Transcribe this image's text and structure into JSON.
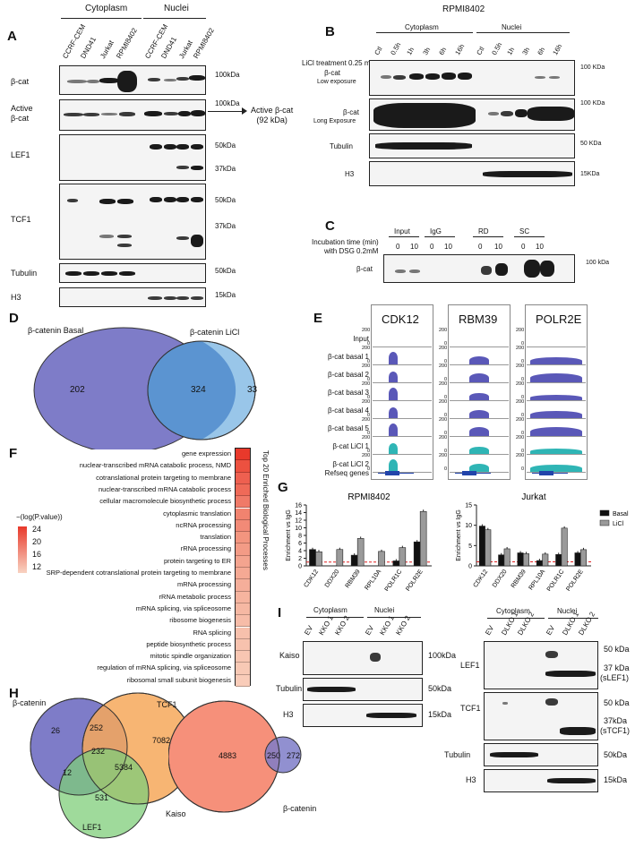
{
  "panels": {
    "A": "A",
    "B": "B",
    "C": "C",
    "D": "D",
    "E": "E",
    "F": "F",
    "G": "G",
    "H": "H",
    "I": "I"
  },
  "A": {
    "cyto": "Cytoplasm",
    "nuc": "Nuclei",
    "lanes": [
      "CCRF-CEM",
      "DND41",
      "Jurkat",
      "RPMI8402",
      "CCRF-CEM",
      "DND41",
      "Jurkat",
      "RPMI8402"
    ],
    "rows": [
      "β-cat",
      "Active\nβ-cat",
      "LEF1",
      "TCF1",
      "Tubulin",
      "H3"
    ],
    "sizes": {
      "b1": "100kDa",
      "b2": "100kDa",
      "l1": "50kDa",
      "l2": "37kDa",
      "t1": "50kDa",
      "t2": "37kDa",
      "tub": "50kDa",
      "h3": "15kDa"
    },
    "active_note": "Active β-cat\n(92 kDa)"
  },
  "B": {
    "title": "RPMI8402",
    "cyto": "Cytoplasm",
    "nuc": "Nuclei",
    "treat": "LiCl treatment 0.25 mM",
    "lanes": [
      "Ctl",
      "0.5h",
      "1h",
      "3h",
      "6h",
      "16h",
      "Ctl",
      "0.5h",
      "1h",
      "3h",
      "6h",
      "16h"
    ],
    "rows": [
      "β-cat",
      "Low exposure",
      "β-cat",
      "Long Exposure",
      "Tubulin",
      "H3"
    ],
    "sizes": [
      "100 KDa",
      "100 KDa",
      "50 KDa",
      "15KDa"
    ]
  },
  "C": {
    "incub": "Incubation time (min)",
    "dsg": "with DSG 0.2mM",
    "groups": [
      "Input",
      "IgG",
      "RD",
      "SC"
    ],
    "times": [
      "0",
      "10",
      "0",
      "10",
      "0",
      "10",
      "0",
      "10"
    ],
    "row": "β-cat",
    "size": "100 kDa"
  },
  "D": {
    "basal": "β-catenin Basal",
    "licl": "β-catenin LiCl",
    "left": "202",
    "mid": "324",
    "right": "33"
  },
  "E": {
    "genes": [
      "CDK12",
      "RBM39",
      "POLR2E"
    ],
    "tracks": [
      "Input",
      "β-cat basal 1",
      "β-cat basal 2",
      "β-cat basal 3",
      "β-cat basal 4",
      "β-cat basal 5",
      "β-cat LiCl 1",
      "β-cat LiCl 2"
    ],
    "refseq": "Refseq genes",
    "scale": "200",
    "zero": "0"
  },
  "F": {
    "legend_title": "−(log(P.value))",
    "legend_ticks": [
      "24",
      "20",
      "16",
      "12"
    ],
    "side": "Top 20 Enriched Biological Processes",
    "terms": [
      "gene expression",
      "nuclear-transcribed mRNA catabolic process, NMD",
      "cotranslational protein targeting to membrane",
      "nuclear-transcribed mRNA catabolic process",
      "cellular macromolecule biosynthetic process",
      "cytoplasmic translation",
      "ncRNA processing",
      "translation",
      "rRNA processing",
      "protein targeting to ER",
      "SRP-dependent cotranslational protein targeting to membrane",
      "mRNA processing",
      "rRNA metabolic process",
      "mRNA splicing, via spliceosome",
      "ribosome biogenesis",
      "RNA splicing",
      "peptide biosynthetic process",
      "mitotic spindle organization",
      "regulation of mRNA splicing, via spliceosome",
      "ribosomal small subunit biogenesis"
    ],
    "colors": [
      "#e8392b",
      "#ec5140",
      "#ee6050",
      "#ef6a58",
      "#f07a68",
      "#f1836f",
      "#f28a77",
      "#f3957f",
      "#f39b86",
      "#f4a48f",
      "#f5a994",
      "#f5ae9a",
      "#f6b49f",
      "#f6b8a3",
      "#f7bca8",
      "#f7c0ac",
      "#f7c2ae",
      "#f8c6b2",
      "#f8c9b5",
      "#f9ccb9"
    ]
  },
  "chart_data": [
    {
      "type": "bar",
      "title": "RPMI8402",
      "ylabel": "Enrichment vs IgG",
      "ylim": [
        0,
        16
      ],
      "categories": [
        "CDK12",
        "DDX20",
        "RBM39",
        "RPL10A",
        "POLR1C",
        "POLR2E"
      ],
      "series": [
        {
          "name": "Basal",
          "values": [
            4.3,
            0,
            2.8,
            0,
            1.3,
            6.3
          ]
        },
        {
          "name": "LiCl",
          "values": [
            3.7,
            4.3,
            7.2,
            3.8,
            4.8,
            14.3
          ]
        }
      ]
    },
    {
      "type": "bar",
      "title": "Jurkat",
      "ylabel": "Enrichment vs IgG",
      "ylim": [
        0,
        15
      ],
      "categories": [
        "CDK12",
        "DDX20",
        "RBM39",
        "RPL10A",
        "POLR1C",
        "POLR2E"
      ],
      "series": [
        {
          "name": "Basal",
          "values": [
            9.8,
            2.7,
            3.2,
            1.3,
            2.8,
            3.2
          ]
        },
        {
          "name": "LiCl",
          "values": [
            8.9,
            4.2,
            3.0,
            2.9,
            9.3,
            4.0
          ]
        }
      ]
    }
  ],
  "G": {
    "yticks1": [
      "0",
      "2",
      "4",
      "6",
      "8",
      "10",
      "12",
      "14",
      "16"
    ],
    "yticks2": [
      "0",
      "5",
      "10",
      "15"
    ],
    "legend": [
      "Basal",
      "LiCl"
    ],
    "colors": {
      "basal": "#111111",
      "licl": "#9a9a9a"
    }
  },
  "H": {
    "bcat": "β-catenin",
    "tcf1": "TCF1",
    "lef1": "LEF1",
    "n26": "26",
    "n252": "252",
    "n7082": "7082",
    "n232": "232",
    "n12": "12",
    "n5384": "5384",
    "n531": "531",
    "kaiso": "Kaiso",
    "bcat2": "β-catenin",
    "n4883": "4883",
    "n250": "250",
    "n272": "272"
  },
  "I": {
    "cyto": "Cytoplasm",
    "nuc": "Nuclei",
    "lanesL": [
      "EV",
      "KKO 1",
      "KKO 2",
      "EV",
      "KKO 1",
      "KKO 2"
    ],
    "lanesR": [
      "EV",
      "DLKO 1",
      "DLKO 2",
      "EV",
      "DLKO 1",
      "DLKO 2"
    ],
    "rowsL": [
      "Kaiso",
      "Tubulin",
      "H3"
    ],
    "sizesL": [
      "100kDa",
      "50kDa",
      "15kDa"
    ],
    "rowsR": [
      "LEF1",
      "TCF1",
      "Tubulin",
      "H3"
    ],
    "sizesR": [
      "50 kDa",
      "37 kDa",
      "(sLEF1)",
      "50 kDa",
      "37kDa",
      "(sTCF1)",
      "50kDa",
      "15kDa"
    ]
  }
}
